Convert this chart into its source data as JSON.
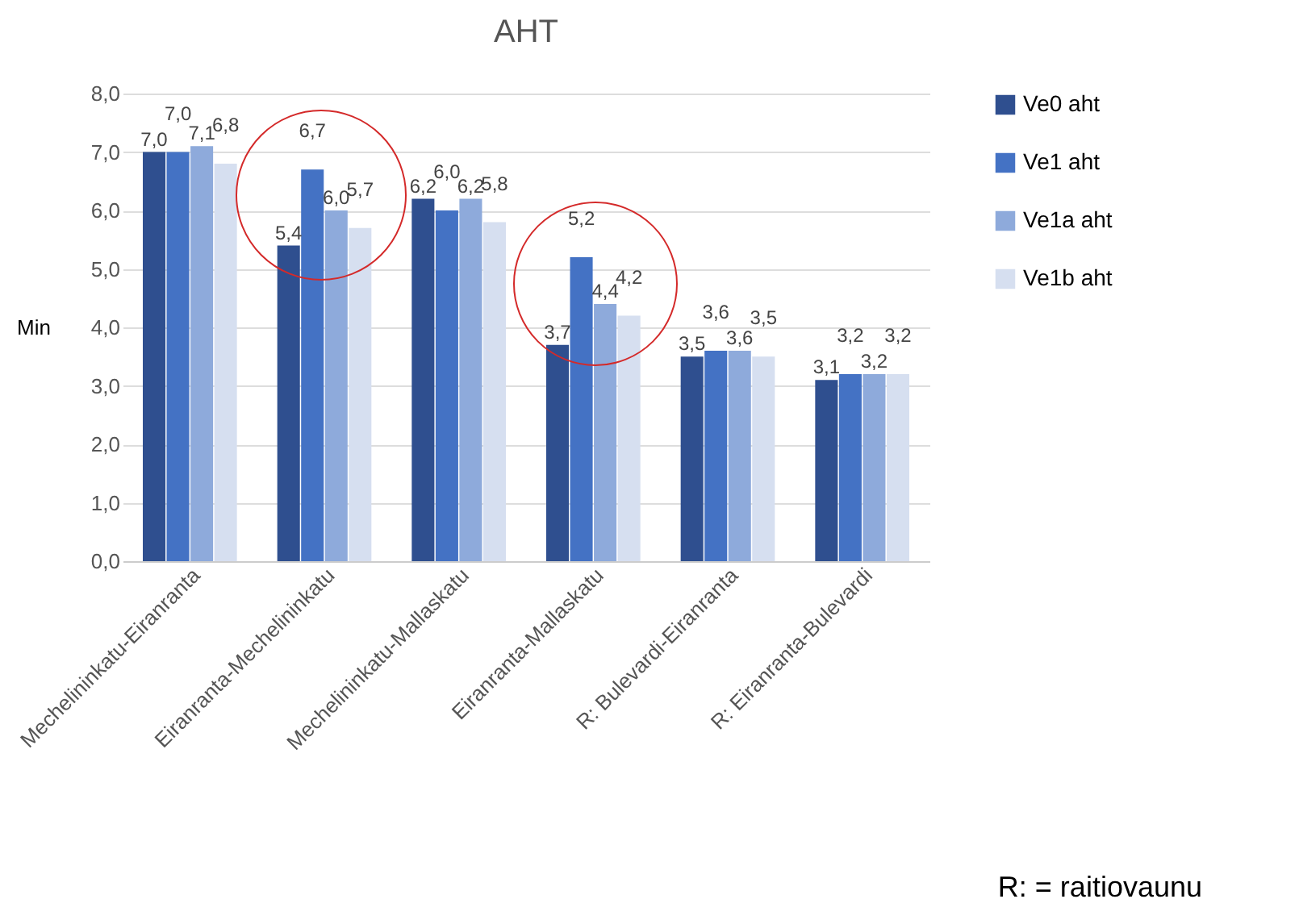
{
  "chart_data": {
    "type": "bar",
    "title": "AHT",
    "ylabel": "Min",
    "categories": [
      "Mechelininkatu-Eiranranta",
      "Eiranranta-Mechelininkatu",
      "Mechelininkatu-Mallaskatu",
      "Eiranranta-Mallaskatu",
      "R: Bulevardi-Eiranranta",
      "R: Eiranranta-Bulevardi"
    ],
    "series": [
      {
        "name": "Ve0 aht",
        "color": "#2f4f8f",
        "values": [
          7.0,
          5.4,
          6.2,
          3.7,
          3.5,
          3.1
        ],
        "value_labels": [
          "7,0",
          "5,4",
          "6,2",
          "3,7",
          "3,5",
          "3,1"
        ]
      },
      {
        "name": "Ve1 aht",
        "color": "#4472c4",
        "values": [
          7.0,
          6.7,
          6.0,
          5.2,
          3.6,
          3.2
        ],
        "value_labels": [
          "7,0",
          "6,7",
          "6,0",
          "5,2",
          "3,6",
          "3,2"
        ]
      },
      {
        "name": "Ve1a aht",
        "color": "#8eaadb",
        "values": [
          7.1,
          6.0,
          6.2,
          4.4,
          3.6,
          3.2
        ],
        "value_labels": [
          "7,1",
          "6,0",
          "6,2",
          "4,4",
          "3,6",
          "3,2"
        ]
      },
      {
        "name": "Ve1b aht",
        "color": "#d6dff0",
        "values": [
          6.8,
          5.7,
          5.8,
          4.2,
          3.5,
          3.2
        ],
        "value_labels": [
          "6,8",
          "5,7",
          "5,8",
          "4,2",
          "3,5",
          "3,2"
        ]
      }
    ],
    "ylim": [
      0,
      8
    ],
    "yticks": [
      {
        "value": 0,
        "label": "0,0"
      },
      {
        "value": 1,
        "label": "1,0"
      },
      {
        "value": 2,
        "label": "2,0"
      },
      {
        "value": 3,
        "label": "3,0"
      },
      {
        "value": 4,
        "label": "4,0"
      },
      {
        "value": 5,
        "label": "5,0"
      },
      {
        "value": 6,
        "label": "6,0"
      },
      {
        "value": 7,
        "label": "7,0"
      },
      {
        "value": 8,
        "label": "8,0"
      }
    ],
    "grid": "y",
    "legend": "right",
    "annotations": [
      "R: = raitiovaunu"
    ]
  }
}
